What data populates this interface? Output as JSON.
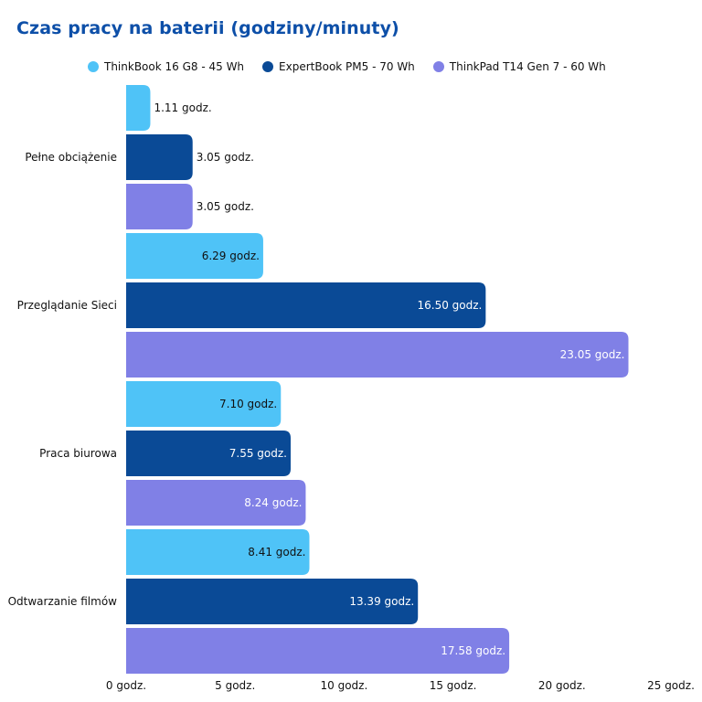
{
  "chart_data": {
    "type": "bar",
    "orientation": "horizontal",
    "title": "Czas pracy na baterii (godziny/minuty)",
    "categories": [
      "Pełne obciążenie",
      "Przeglądanie Sieci",
      "Praca biurowa",
      "Odtwarzanie filmów"
    ],
    "series": [
      {
        "name": "ThinkBook 16 G8 - 45 Wh",
        "color": "#4fc3f7",
        "values": [
          1.11,
          6.29,
          7.1,
          8.41
        ],
        "labels": [
          "1.11 godz.",
          "6.29 godz.",
          "7.10 godz.",
          "8.41 godz."
        ]
      },
      {
        "name": "ExpertBook PM5 - 70 Wh",
        "color": "#0a4a96",
        "values": [
          3.05,
          16.5,
          7.55,
          13.39
        ],
        "labels": [
          "3.05 godz.",
          "16.50 godz.",
          "7.55 godz.",
          "13.39 godz."
        ]
      },
      {
        "name": "ThinkPad T14 Gen 7 - 60 Wh",
        "color": "#8080e6",
        "values": [
          3.05,
          23.05,
          8.24,
          17.58
        ],
        "labels": [
          "3.05 godz.",
          "23.05 godz.",
          "8.24 godz.",
          "17.58 godz."
        ]
      }
    ],
    "xlim": [
      0,
      25
    ],
    "xticks": [
      0,
      5,
      10,
      15,
      20,
      25
    ],
    "xtick_labels": [
      "0 godz.",
      "5 godz.",
      "10 godz.",
      "15 godz.",
      "20 godz.",
      "25 godz."
    ],
    "grid": false,
    "legend_position": "top"
  }
}
